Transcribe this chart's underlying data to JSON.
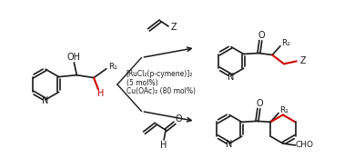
{
  "background_color": "#ffffff",
  "bond_color": "#1a1a1a",
  "red_color": "#cc0000",
  "text_color": "#1a1a1a",
  "figsize": [
    3.78,
    1.85
  ],
  "dpi": 100,
  "catalyst_line1": "[RuCl₂(p-cymene)]₂",
  "catalyst_line2": "(5 mol%)",
  "catalyst_line3": "Cu(OAc)₂ (80 mol%)",
  "label_N": "N",
  "label_OH": "OH",
  "label_H": "H",
  "label_R1": "R₁",
  "label_Z": "Z",
  "label_O": "O",
  "label_CHO": "CHO"
}
